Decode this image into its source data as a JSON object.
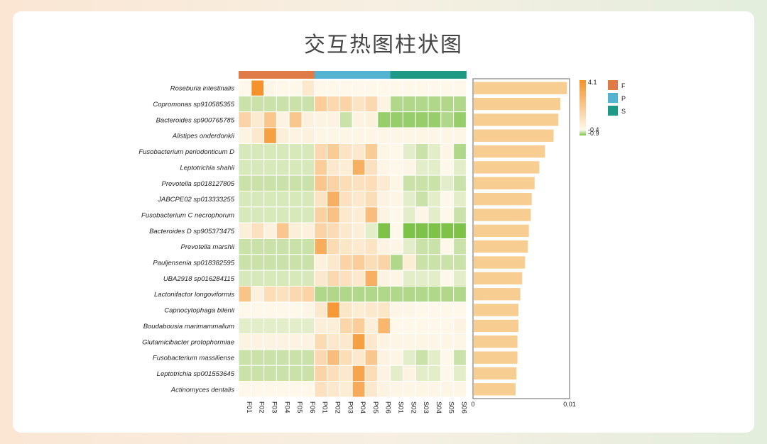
{
  "title": "交互热图柱状图",
  "chart_data": {
    "type": "heatmap",
    "columns": [
      "F01",
      "F02",
      "F03",
      "F04",
      "F05",
      "F06",
      "P01",
      "P02",
      "P03",
      "P04",
      "P05",
      "P06",
      "S01",
      "S02",
      "S03",
      "S04",
      "S05",
      "S06"
    ],
    "column_groups": [
      "F",
      "F",
      "F",
      "F",
      "F",
      "F",
      "P",
      "P",
      "P",
      "P",
      "P",
      "P",
      "S",
      "S",
      "S",
      "S",
      "S",
      "S"
    ],
    "rows": [
      "Roseburia intestinalis",
      "Copromonas sp910585355",
      "Bacteroides sp900765785",
      "Alistipes onderdonkii",
      "Fusobacterium periodonticum D",
      "Leptotrichia shahii",
      "Prevotella sp018127805",
      "JABCPE02 sp013333255",
      "Fusobacterium C necrophorum",
      "Bacteroides D sp905373475",
      "Prevotella marshii",
      "Pauljensenia sp018382595",
      "UBA2918 sp016284115",
      "Lactonifactor longoviformis",
      "Capnocytophaga bilenii",
      "Boudabousia marimammalium",
      "Glutamicibacter protophormiae",
      "Fusobacterium massiliense",
      "Leptotrichia sp001553645",
      "Actinomyces dentalis"
    ],
    "values": [
      [
        -0.4,
        4.1,
        -0.3,
        -0.4,
        -0.4,
        0.3,
        -0.4,
        -0.4,
        -0.4,
        -0.4,
        -0.4,
        -0.4,
        -0.4,
        -0.4,
        -0.4,
        -0.4,
        -0.4,
        -0.4
      ],
      [
        -0.6,
        -0.6,
        -0.6,
        -0.6,
        -0.6,
        -0.6,
        1.5,
        1.0,
        1.2,
        0.5,
        1.0,
        -0.2,
        -0.7,
        -0.7,
        -0.7,
        -0.7,
        -0.7,
        -0.7
      ],
      [
        1.2,
        0.2,
        1.8,
        -0.2,
        1.8,
        -0.1,
        -0.2,
        -0.2,
        -0.6,
        -0.2,
        -0.1,
        -0.8,
        -0.8,
        -0.8,
        -0.8,
        -0.8,
        -0.7,
        -0.8
      ],
      [
        -0.2,
        0.3,
        3.5,
        0.0,
        -0.2,
        -0.1,
        -0.3,
        -0.3,
        -0.3,
        -0.3,
        -0.3,
        -0.3,
        -0.3,
        -0.3,
        -0.3,
        -0.3,
        -0.3,
        -0.3
      ],
      [
        -0.55,
        -0.55,
        -0.55,
        -0.55,
        -0.55,
        -0.55,
        1.0,
        1.6,
        0.5,
        0.3,
        1.6,
        -0.3,
        -0.4,
        -0.5,
        -0.6,
        -0.5,
        -0.3,
        -0.7
      ],
      [
        -0.55,
        -0.55,
        -0.55,
        -0.55,
        -0.55,
        -0.55,
        1.5,
        0.3,
        0.1,
        2.8,
        0.6,
        -0.3,
        -0.4,
        -0.3,
        -0.5,
        -0.5,
        -0.4,
        -0.5
      ],
      [
        -0.6,
        -0.6,
        -0.6,
        -0.6,
        -0.6,
        -0.6,
        1.8,
        1.2,
        0.8,
        0.6,
        0.8,
        0.2,
        -0.3,
        -0.6,
        -0.6,
        -0.6,
        -0.5,
        -0.6
      ],
      [
        -0.55,
        -0.55,
        -0.55,
        -0.55,
        -0.55,
        -0.55,
        0.5,
        2.8,
        0.6,
        0.3,
        0.8,
        -0.2,
        -0.3,
        -0.5,
        -0.6,
        -0.5,
        -0.4,
        -0.5
      ],
      [
        -0.55,
        -0.55,
        -0.55,
        -0.55,
        -0.55,
        -0.55,
        1.3,
        2.0,
        0.3,
        0.1,
        2.2,
        -0.2,
        -0.4,
        -0.5,
        -0.3,
        -0.5,
        -0.4,
        -0.6
      ],
      [
        0.0,
        0.6,
        -0.1,
        1.8,
        0.0,
        -0.1,
        1.2,
        0.9,
        0.3,
        0.0,
        -0.5,
        -0.9,
        -0.4,
        -0.95,
        -0.95,
        -0.95,
        -0.95,
        -0.95
      ],
      [
        -0.6,
        -0.6,
        -0.6,
        -0.6,
        -0.6,
        -0.6,
        2.9,
        0.9,
        0.4,
        0.2,
        0.5,
        -0.2,
        -0.3,
        -0.5,
        -0.6,
        -0.6,
        -0.4,
        -0.6
      ],
      [
        -0.6,
        -0.6,
        -0.6,
        -0.6,
        -0.6,
        -0.6,
        -0.1,
        0.3,
        1.2,
        1.5,
        0.8,
        1.2,
        -0.7,
        0.1,
        -0.6,
        -0.6,
        -0.6,
        -0.6
      ],
      [
        -0.55,
        -0.55,
        -0.55,
        -0.55,
        -0.55,
        -0.55,
        0.3,
        1.0,
        0.6,
        0.3,
        2.8,
        -0.2,
        -0.3,
        -0.5,
        -0.5,
        -0.5,
        -0.4,
        -0.5
      ],
      [
        1.9,
        -0.1,
        0.8,
        0.6,
        1.0,
        1.2,
        -0.7,
        -0.7,
        -0.7,
        -0.7,
        -0.7,
        -0.7,
        -0.7,
        -0.7,
        -0.7,
        -0.7,
        -0.7,
        -0.7
      ],
      [
        -0.4,
        -0.4,
        -0.4,
        -0.4,
        -0.4,
        -0.3,
        0.3,
        3.8,
        0.4,
        0.1,
        0.3,
        0.4,
        -0.3,
        -0.3,
        -0.4,
        -0.4,
        -0.4,
        -0.4
      ],
      [
        -0.5,
        -0.5,
        -0.5,
        -0.5,
        -0.5,
        -0.5,
        0.0,
        0.0,
        1.1,
        1.5,
        0.0,
        2.5,
        -0.4,
        -0.4,
        -0.4,
        -0.4,
        -0.4,
        -0.2
      ],
      [
        -0.2,
        -0.2,
        -0.2,
        -0.2,
        -0.2,
        -0.2,
        0.9,
        0.3,
        0.3,
        3.5,
        0.3,
        -0.2,
        -0.3,
        -0.3,
        -0.3,
        -0.3,
        -0.3,
        -0.3
      ],
      [
        -0.6,
        -0.6,
        -0.6,
        -0.6,
        -0.6,
        -0.6,
        1.0,
        2.2,
        0.8,
        0.3,
        1.8,
        -0.2,
        -0.3,
        -0.5,
        -0.6,
        -0.5,
        -0.4,
        -0.6
      ],
      [
        -0.6,
        -0.6,
        -0.6,
        -0.6,
        -0.6,
        -0.6,
        1.2,
        0.7,
        0.3,
        3.3,
        0.8,
        -0.2,
        -0.5,
        -0.2,
        -0.5,
        -0.5,
        -0.4,
        -0.5
      ],
      [
        -0.4,
        -0.4,
        -0.4,
        -0.4,
        -0.4,
        -0.4,
        0.6,
        0.3,
        0.1,
        3.0,
        0.3,
        -0.2,
        -0.3,
        -0.3,
        -0.3,
        -0.3,
        -0.3,
        -0.3
      ]
    ],
    "color_scale": {
      "min": -0.9,
      "mid": -0.4,
      "max": 4.1,
      "tick_labels": [
        "4.1",
        "-0.4",
        "-0.9"
      ],
      "low_color": "#7ec24a",
      "mid_color": "#fdf8ea",
      "high_color": "#f5922b"
    },
    "group_legend": [
      {
        "label": "F",
        "color": "#e07a46"
      },
      {
        "label": "P",
        "color": "#55b3d2"
      },
      {
        "label": "S",
        "color": "#1d9a86"
      }
    ],
    "bar_chart": {
      "type": "bar",
      "orientation": "horizontal",
      "values": [
        0.0098,
        0.0091,
        0.0089,
        0.0084,
        0.0075,
        0.0069,
        0.0064,
        0.0061,
        0.006,
        0.0058,
        0.0057,
        0.0054,
        0.0051,
        0.0049,
        0.0047,
        0.0047,
        0.0046,
        0.0046,
        0.0045,
        0.0044
      ],
      "xlim": [
        0,
        0.01
      ],
      "x_tick_labels": [
        "0",
        "0.01"
      ],
      "bar_color": "#f7cd92"
    }
  }
}
